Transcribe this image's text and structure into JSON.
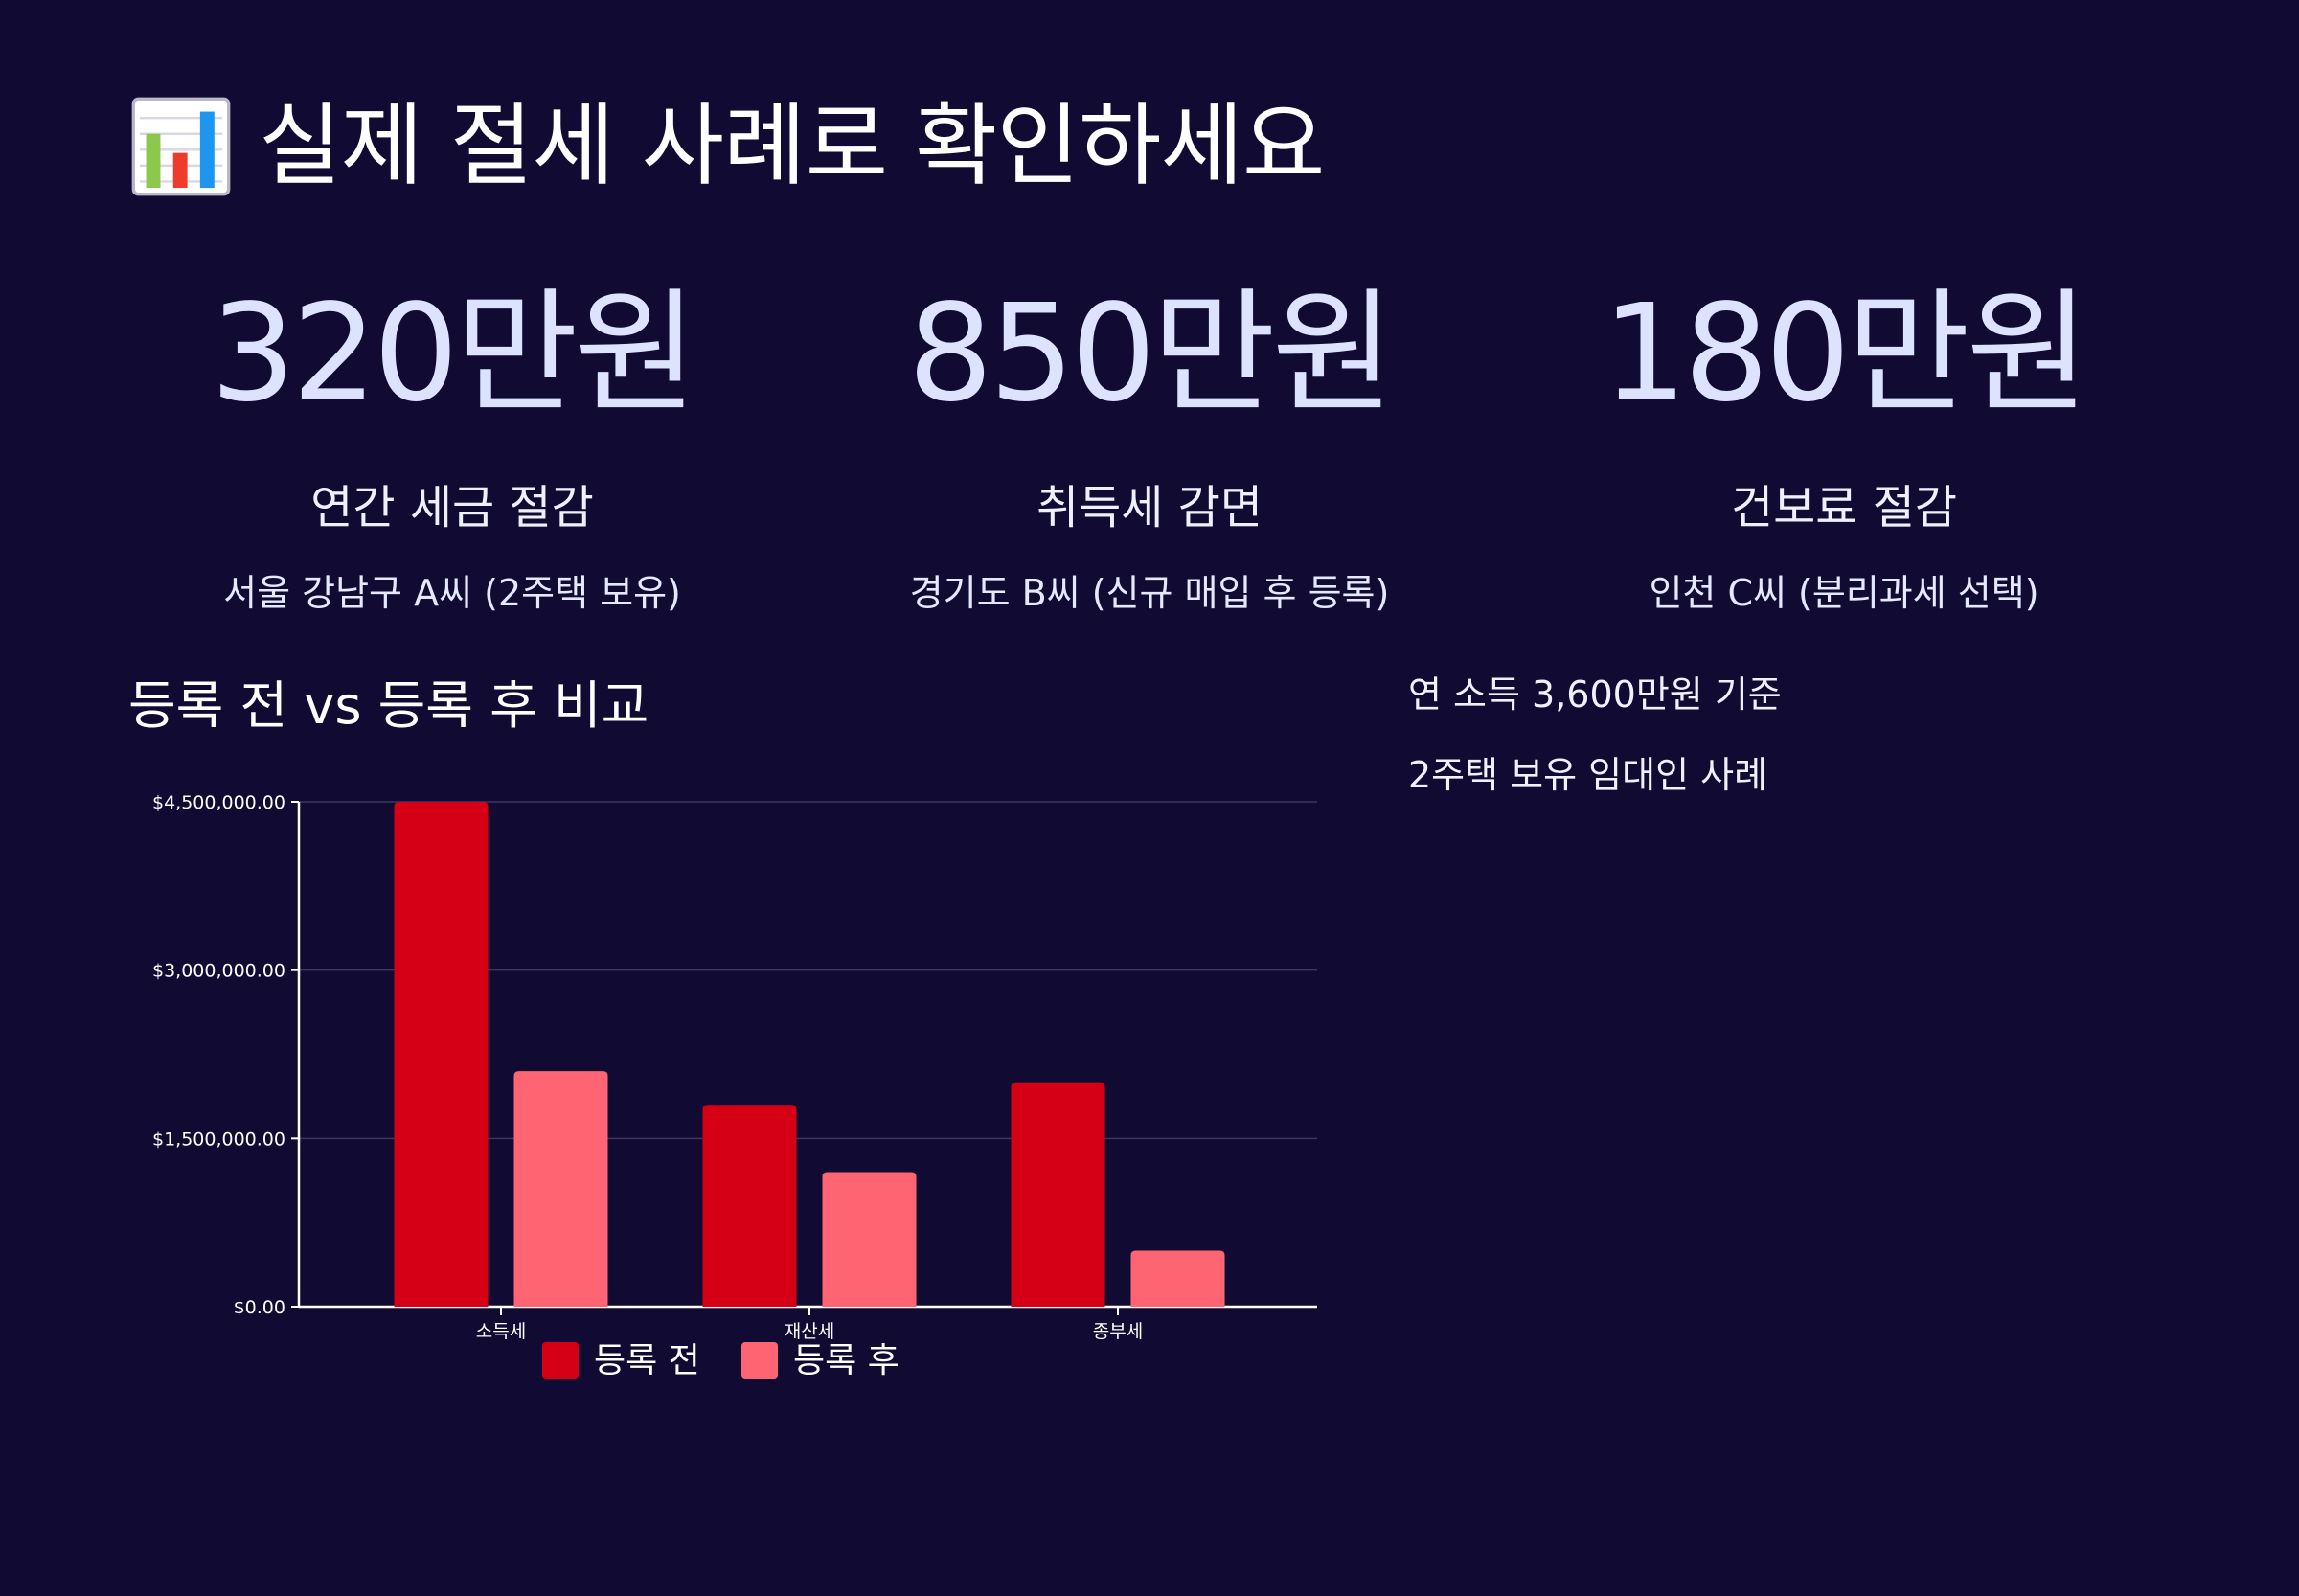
{
  "header": {
    "icon": "bar-chart-icon",
    "title": "실제 절세 사례로 확인하세요"
  },
  "stats": [
    {
      "value": "320만원",
      "label": "연간 세금 절감",
      "sub": "서울 강남구 A씨 (2주택 보유)"
    },
    {
      "value": "850만원",
      "label": "취득세 감면",
      "sub": "경기도 B씨 (신규 매입 후 등록)"
    },
    {
      "value": "180만원",
      "label": "건보료 절감",
      "sub": "인천 C씨 (분리과세 선택)"
    }
  ],
  "chart_section": {
    "title": "등록 전 vs 등록 후 비교"
  },
  "notes": [
    "연 소득 3,600만원 기준",
    "2주택 보유 임대인 사례"
  ],
  "colors": {
    "background": "#110b33",
    "before": "#d50016",
    "after": "#ff6472",
    "stat_value": "#dde3ff"
  },
  "chart_data": {
    "type": "bar",
    "title": "등록 전 vs 등록 후 비교",
    "categories": [
      "소득세",
      "재산세",
      "종부세"
    ],
    "series": [
      {
        "name": "등록 전",
        "values": [
          4500000,
          1800000,
          2000000
        ]
      },
      {
        "name": "등록 후",
        "values": [
          2100000,
          1200000,
          500000
        ]
      }
    ],
    "yticks": [
      0,
      1500000,
      3000000,
      4500000
    ],
    "ytick_labels": [
      "$0.00",
      "$1,500,000.00",
      "$3,000,000.00",
      "$4,500,000.00"
    ],
    "ylim": [
      0,
      4500000
    ],
    "grid": true,
    "legend": "bottom-center",
    "xlabel": "",
    "ylabel": ""
  }
}
